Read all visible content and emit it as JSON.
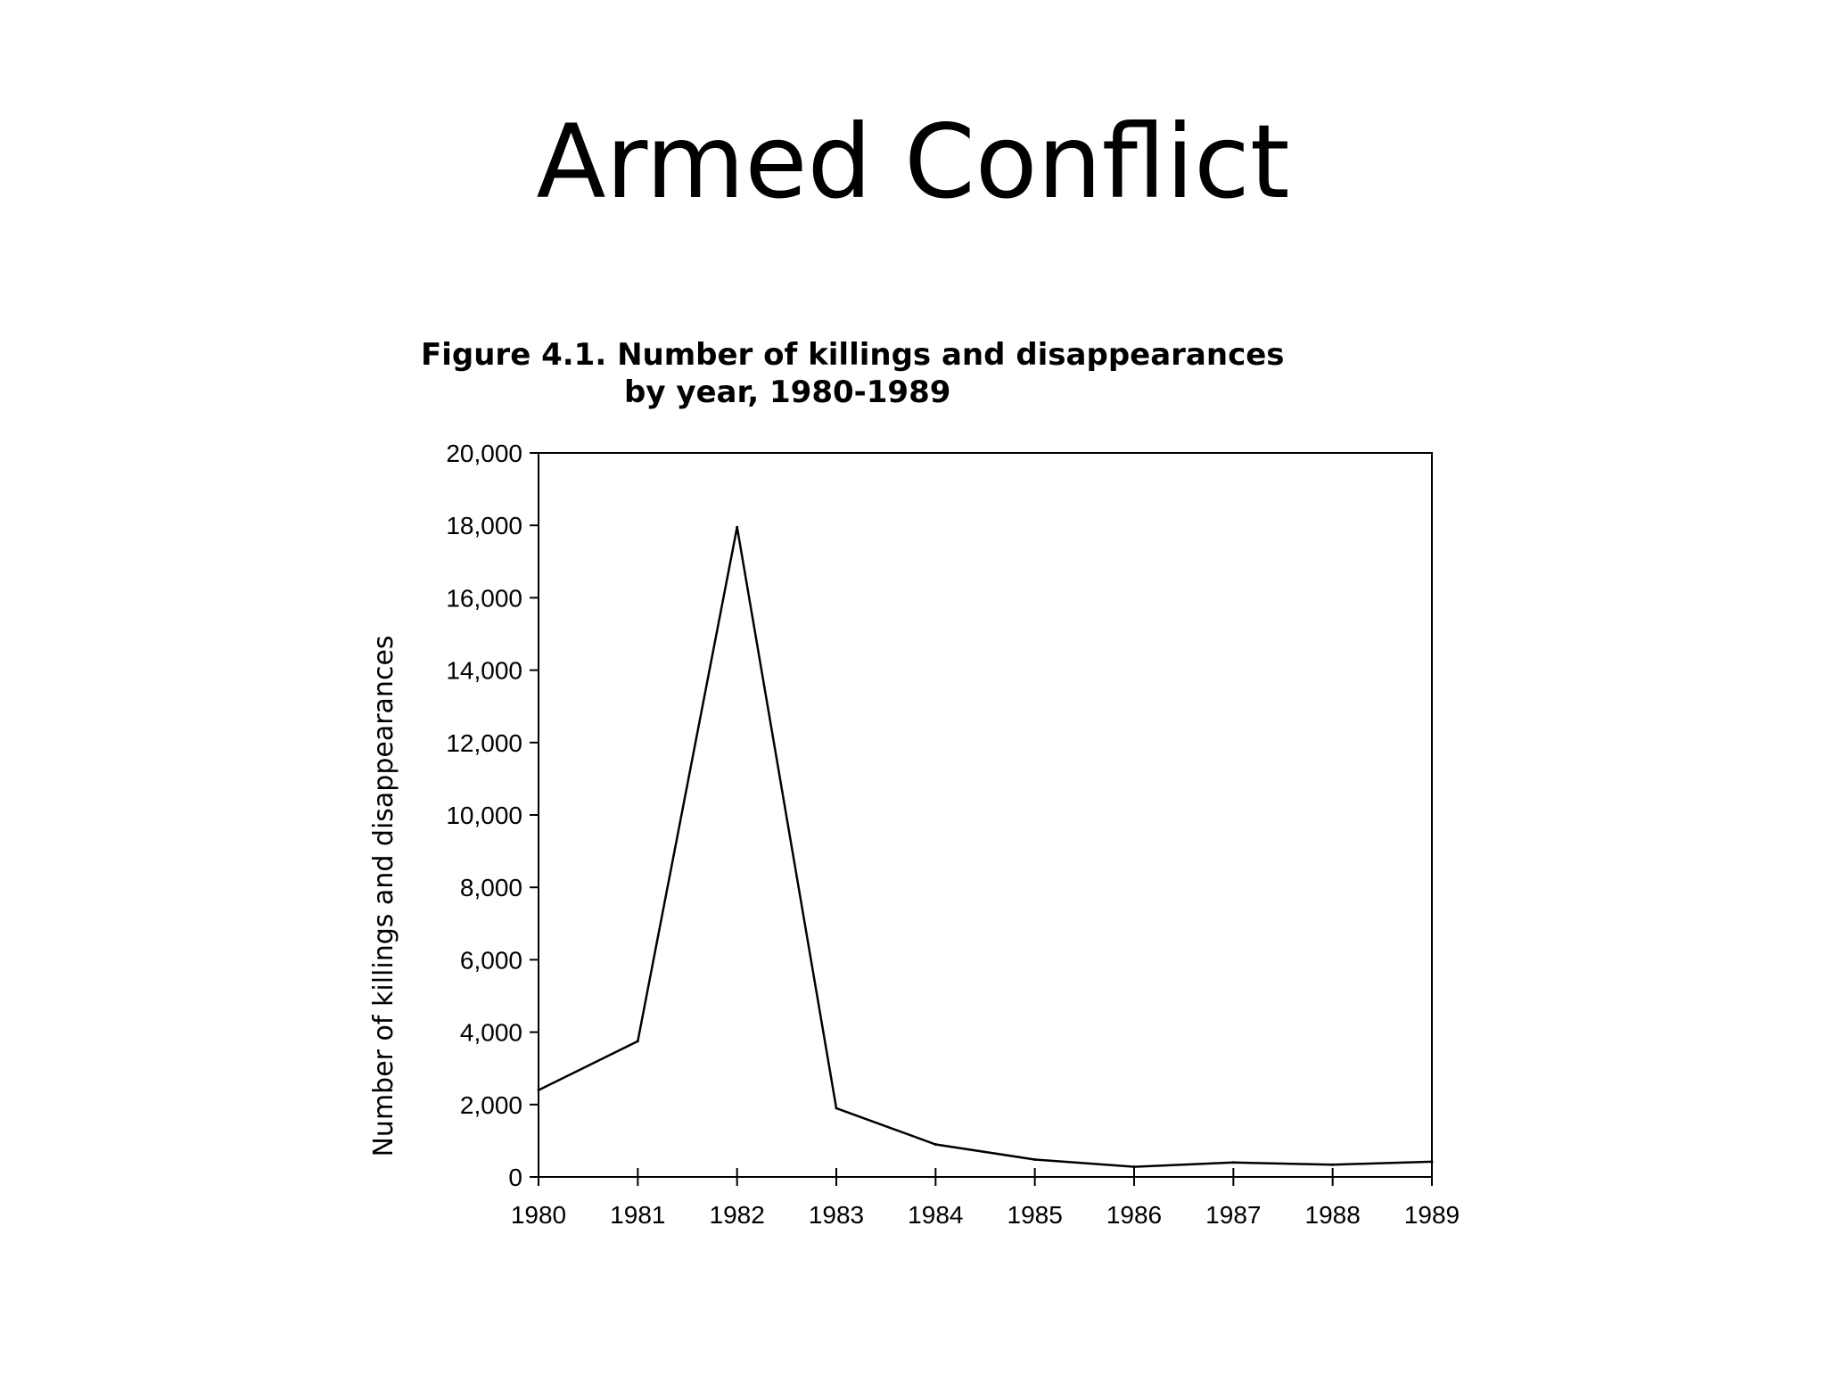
{
  "slide": {
    "title": "Armed Conflict"
  },
  "chart_data": {
    "type": "line",
    "title_line1": "Figure 4.1. Number of killings and disappearances",
    "title_line2": "by year, 1980-1989",
    "xlabel": "",
    "ylabel": "Number of killings and disappearances",
    "x": [
      "1980",
      "1981",
      "1982",
      "1983",
      "1984",
      "1985",
      "1986",
      "1987",
      "1988",
      "1989"
    ],
    "y_ticks": [
      "0",
      "2,000",
      "4,000",
      "6,000",
      "8,000",
      "10,000",
      "12,000",
      "14,000",
      "16,000",
      "18,000",
      "20,000"
    ],
    "ylim": [
      0,
      20000
    ],
    "series": [
      {
        "values": [
          2400,
          3750,
          17950,
          1900,
          900,
          480,
          280,
          400,
          340,
          420
        ]
      }
    ],
    "grid": false,
    "line_color": "#000000"
  }
}
